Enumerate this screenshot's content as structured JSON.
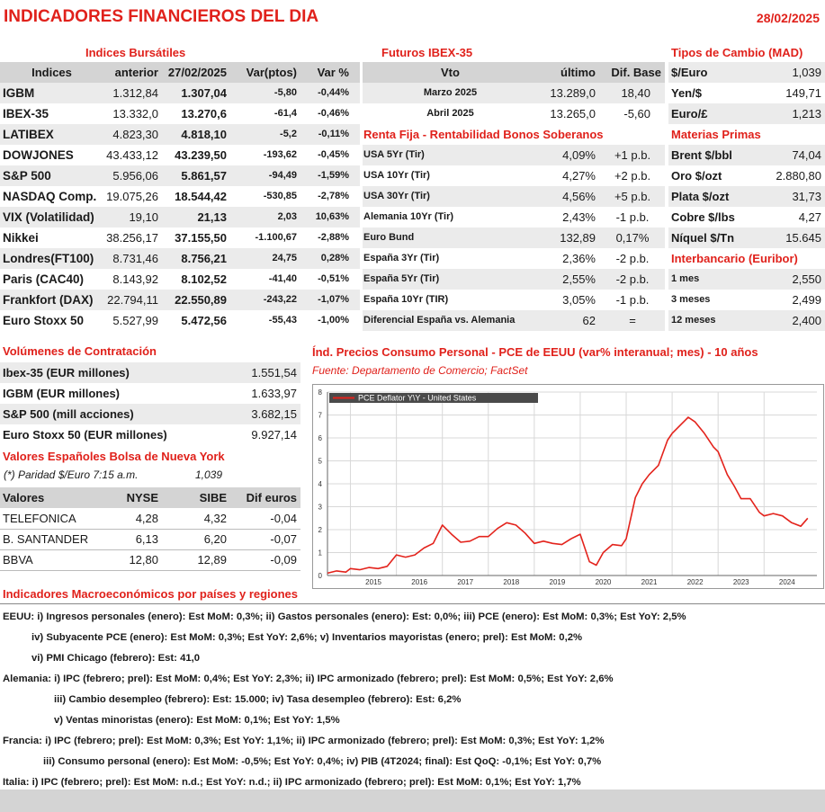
{
  "header": {
    "title": "INDICADORES FINANCIEROS DEL DIA",
    "date": "28/02/2025"
  },
  "indices": {
    "title": "Indices Bursátiles",
    "columns": [
      "Indices",
      "anterior",
      "27/02/2025",
      "Var(ptos)",
      "Var %"
    ],
    "rows": [
      {
        "name": "IGBM",
        "prev": "1.312,84",
        "last": "1.307,04",
        "var": "-5,80",
        "pct": "-0,44%"
      },
      {
        "name": "IBEX-35",
        "prev": "13.332,0",
        "last": "13.270,6",
        "var": "-61,4",
        "pct": "-0,46%"
      },
      {
        "name": "LATIBEX",
        "prev": "4.823,30",
        "last": "4.818,10",
        "var": "-5,2",
        "pct": "-0,11%"
      },
      {
        "name": "DOWJONES",
        "prev": "43.433,12",
        "last": "43.239,50",
        "var": "-193,62",
        "pct": "-0,45%"
      },
      {
        "name": "S&P 500",
        "prev": "5.956,06",
        "last": "5.861,57",
        "var": "-94,49",
        "pct": "-1,59%"
      },
      {
        "name": "NASDAQ Comp.",
        "prev": "19.075,26",
        "last": "18.544,42",
        "var": "-530,85",
        "pct": "-2,78%"
      },
      {
        "name": "VIX (Volatilidad)",
        "prev": "19,10",
        "last": "21,13",
        "var": "2,03",
        "pct": "10,63%"
      },
      {
        "name": "Nikkei",
        "prev": "38.256,17",
        "last": "37.155,50",
        "var": "-1.100,67",
        "pct": "-2,88%"
      },
      {
        "name": "Londres(FT100)",
        "prev": "8.731,46",
        "last": "8.756,21",
        "var": "24,75",
        "pct": "0,28%"
      },
      {
        "name": "Paris (CAC40)",
        "prev": "8.143,92",
        "last": "8.102,52",
        "var": "-41,40",
        "pct": "-0,51%"
      },
      {
        "name": "Frankfort (DAX)",
        "prev": "22.794,11",
        "last": "22.550,89",
        "var": "-243,22",
        "pct": "-1,07%"
      },
      {
        "name": "Euro Stoxx 50",
        "prev": "5.527,99",
        "last": "5.472,56",
        "var": "-55,43",
        "pct": "-1,00%"
      }
    ]
  },
  "futures": {
    "title": "Futuros  IBEX-35",
    "columns": [
      "Vto",
      "último",
      "Dif. Base"
    ],
    "rows": [
      {
        "vto": "Marzo 2025",
        "last": "13.289,0",
        "base": "18,40"
      },
      {
        "vto": "Abril 2025",
        "last": "13.265,0",
        "base": "-5,60"
      }
    ]
  },
  "bonds": {
    "title": "Renta Fija - Rentabilidad Bonos Soberanos",
    "rows": [
      {
        "name": "USA 5Yr (Tir)",
        "value": "4,09%",
        "chg": "+1 p.b."
      },
      {
        "name": "USA 10Yr (Tir)",
        "value": "4,27%",
        "chg": "+2 p.b."
      },
      {
        "name": "USA 30Yr (Tir)",
        "value": "4,56%",
        "chg": "+5 p.b."
      },
      {
        "name": "Alemania 10Yr (Tir)",
        "value": "2,43%",
        "chg": "-1 p.b."
      },
      {
        "name": "Euro Bund",
        "value": "132,89",
        "chg": "0,17%"
      },
      {
        "name": "España 3Yr (Tir)",
        "value": "2,36%",
        "chg": "-2 p.b."
      },
      {
        "name": "España 5Yr (Tir)",
        "value": "2,55%",
        "chg": "-2 p.b."
      },
      {
        "name": "España 10Yr (TIR)",
        "value": "3,05%",
        "chg": "-1 p.b."
      },
      {
        "name": "Diferencial España vs. Alemania",
        "value": "62",
        "chg": "="
      }
    ]
  },
  "fx": {
    "title": "Tipos de Cambio (MAD)",
    "rows": [
      {
        "name": "$/Euro",
        "value": "1,039"
      },
      {
        "name": "Yen/$",
        "value": "149,71"
      },
      {
        "name": "Euro/£",
        "value": "1,213"
      }
    ]
  },
  "commodities": {
    "title": "Materias Primas",
    "rows": [
      {
        "name": "Brent $/bbl",
        "value": "74,04"
      },
      {
        "name": "Oro $/ozt",
        "value": "2.880,80"
      },
      {
        "name": "Plata $/ozt",
        "value": "31,73"
      },
      {
        "name": "Cobre $/lbs",
        "value": "4,27"
      },
      {
        "name": "Níquel $/Tn",
        "value": "15.645"
      }
    ]
  },
  "euribor": {
    "title": "Interbancario (Euribor)",
    "rows": [
      {
        "name": "1 mes",
        "value": "2,550"
      },
      {
        "name": "3 meses",
        "value": "2,499"
      },
      {
        "name": "12 meses",
        "value": "2,400"
      }
    ]
  },
  "volumes": {
    "title": "Volúmenes de Contratación",
    "rows": [
      {
        "name": "Ibex-35 (EUR millones)",
        "value": "1.551,54"
      },
      {
        "name": "IGBM (EUR millones)",
        "value": "1.633,97"
      },
      {
        "name": "S&P 500 (mill acciones)",
        "value": "3.682,15"
      },
      {
        "name": "Euro Stoxx 50 (EUR millones)",
        "value": "9.927,14"
      }
    ]
  },
  "nyse": {
    "title": "Valores Españoles Bolsa de Nueva York",
    "parity_label": "(*) Paridad $/Euro 7:15 a.m.",
    "parity_value": "1,039",
    "columns": [
      "Valores",
      "NYSE",
      "SIBE",
      "Dif euros"
    ],
    "rows": [
      {
        "name": "TELEFONICA",
        "nyse": "4,28",
        "sibe": "4,32",
        "dif": "-0,04"
      },
      {
        "name": "B. SANTANDER",
        "nyse": "6,13",
        "sibe": "6,20",
        "dif": "-0,07"
      },
      {
        "name": "BBVA",
        "nyse": "12,80",
        "sibe": "12,89",
        "dif": "-0,09"
      }
    ]
  },
  "chart_section": {
    "title": "Índ. Precios Consumo Personal - PCE de EEUU (var% interanual; mes) - 10 años",
    "source": "Fuente: Departamento de Comercio; FactSet"
  },
  "chart_data": {
    "type": "line",
    "legend": "PCE Deflator  Y\\Y - United States",
    "line_color": "#e3231c",
    "ylim": [
      0,
      8
    ],
    "yticks": [
      "0",
      "1",
      "2",
      "3",
      "4",
      "5",
      "6",
      "7",
      "8"
    ],
    "xlim": [
      2014.5,
      2025.15
    ],
    "xticks": [
      "2015",
      "2016",
      "2017",
      "2018",
      "2019",
      "2020",
      "2021",
      "2022",
      "2023",
      "2024"
    ],
    "grid": true,
    "legend_position": "top-left",
    "series": [
      {
        "name": "PCE Deflator  Y\\Y - United States",
        "x": [
          2014.5,
          2014.7,
          2014.9,
          2015.0,
          2015.2,
          2015.4,
          2015.6,
          2015.8,
          2016.0,
          2016.2,
          2016.4,
          2016.6,
          2016.8,
          2017.0,
          2017.2,
          2017.4,
          2017.6,
          2017.8,
          2018.0,
          2018.2,
          2018.4,
          2018.6,
          2018.8,
          2019.0,
          2019.2,
          2019.4,
          2019.6,
          2019.8,
          2020.0,
          2020.2,
          2020.35,
          2020.5,
          2020.7,
          2020.9,
          2021.0,
          2021.2,
          2021.35,
          2021.5,
          2021.7,
          2021.9,
          2022.0,
          2022.2,
          2022.35,
          2022.5,
          2022.7,
          2022.9,
          2023.0,
          2023.2,
          2023.35,
          2023.5,
          2023.7,
          2023.9,
          2024.0,
          2024.2,
          2024.4,
          2024.6,
          2024.8,
          2024.95
        ],
        "y": [
          0.1,
          0.2,
          0.15,
          0.3,
          0.25,
          0.35,
          0.3,
          0.4,
          0.9,
          0.8,
          0.9,
          1.2,
          1.4,
          2.2,
          1.8,
          1.45,
          1.5,
          1.7,
          1.7,
          2.05,
          2.3,
          2.2,
          1.85,
          1.4,
          1.5,
          1.4,
          1.35,
          1.6,
          1.8,
          0.6,
          0.45,
          1.0,
          1.35,
          1.3,
          1.6,
          3.4,
          4.0,
          4.4,
          4.8,
          5.9,
          6.2,
          6.6,
          6.9,
          6.7,
          6.2,
          5.6,
          5.4,
          4.4,
          3.9,
          3.35,
          3.35,
          2.75,
          2.6,
          2.7,
          2.6,
          2.3,
          2.15,
          2.5
        ]
      }
    ]
  },
  "macro": {
    "title": "Indicadores Macroeconómicos por países y regiones",
    "lines": [
      "EEUU: i) Ingresos personales (enero): Est MoM: 0,3%; ii) Gastos personales (enero): Est: 0,0%; iii) PCE (enero): Est MoM: 0,3%; Est YoY: 2,5%",
      "iv) Subyacente PCE (enero): Est MoM: 0,3%; Est YoY: 2,6%; v) Inventarios mayoristas (enero; prel): Est MoM: 0,2%",
      "vi) PMI Chicago (febrero): Est: 41,0",
      "Alemania: i) IPC (febrero; prel): Est MoM: 0,4%; Est YoY: 2,3%; ii) IPC armonizado (febrero; prel): Est MoM: 0,5%; Est YoY: 2,6%",
      "iii) Cambio desempleo (febrero): Est: 15.000; iv) Tasa desempleo (febrero): Est: 6,2%",
      "v) Ventas minoristas (enero): Est MoM: 0,1%; Est YoY: 1,5%",
      "Francia: i) IPC (febrero; prel): Est MoM: 0,3%; Est YoY: 1,1%; ii) IPC armonizado (febrero; prel): Est MoM: 0,3%; Est YoY: 1,2%",
      "iii) Consumo personal (enero): Est MoM: -0,5%; Est YoY: 0,4%; iv) PIB (4T2024; final): Est QoQ: -0,1%; Est YoY: 0,7%",
      "Italia: i) IPC (febrero; prel): Est MoM: n.d.; Est YoY: n.d.; ii) IPC armonizado (febrero; prel): Est MoM: 0,1%; Est YoY: 1,7%"
    ]
  }
}
